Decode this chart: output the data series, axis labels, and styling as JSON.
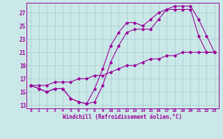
{
  "xlabel": "Windchill (Refroidissement éolien,°C)",
  "bg_color": "#cbe8e8",
  "line_color": "#990099",
  "grid_color": "#a0cccc",
  "line1_x": [
    0,
    1,
    2,
    3,
    4,
    5,
    6,
    7,
    8,
    9,
    10,
    11,
    12,
    13,
    14,
    15,
    16,
    17,
    18,
    19,
    20,
    21,
    22,
    23
  ],
  "line1_y": [
    16.0,
    15.5,
    15.0,
    15.5,
    15.5,
    14.0,
    13.5,
    13.2,
    13.5,
    16.0,
    19.5,
    22.0,
    24.0,
    24.5,
    24.5,
    24.5,
    26.0,
    27.5,
    27.5,
    27.5,
    27.5,
    23.5,
    21.0,
    21.0
  ],
  "line2_x": [
    0,
    1,
    2,
    3,
    4,
    5,
    6,
    7,
    8,
    9,
    10,
    11,
    12,
    13,
    14,
    15,
    16,
    17,
    18,
    19,
    20,
    21,
    22,
    23
  ],
  "line2_y": [
    16.0,
    15.5,
    15.0,
    15.5,
    15.5,
    14.0,
    13.5,
    13.2,
    15.5,
    18.5,
    22.0,
    24.0,
    25.5,
    25.5,
    25.0,
    26.0,
    27.0,
    27.5,
    28.0,
    28.0,
    28.0,
    26.0,
    23.5,
    21.0
  ],
  "line3_x": [
    0,
    1,
    2,
    3,
    4,
    5,
    6,
    7,
    8,
    9,
    10,
    11,
    12,
    13,
    14,
    15,
    16,
    17,
    18,
    19,
    20,
    21,
    22,
    23
  ],
  "line3_y": [
    16.0,
    16.0,
    16.0,
    16.5,
    16.5,
    16.5,
    17.0,
    17.0,
    17.5,
    17.5,
    18.0,
    18.5,
    19.0,
    19.0,
    19.5,
    20.0,
    20.0,
    20.5,
    20.5,
    21.0,
    21.0,
    21.0,
    21.0,
    21.0
  ],
  "ylim": [
    12.5,
    28.5
  ],
  "xlim": [
    -0.5,
    23.5
  ],
  "yticks": [
    13,
    15,
    17,
    19,
    21,
    23,
    25,
    27
  ],
  "xticks": [
    0,
    1,
    2,
    3,
    4,
    5,
    6,
    7,
    8,
    9,
    10,
    11,
    12,
    13,
    14,
    15,
    16,
    17,
    18,
    19,
    20,
    21,
    22,
    23
  ]
}
